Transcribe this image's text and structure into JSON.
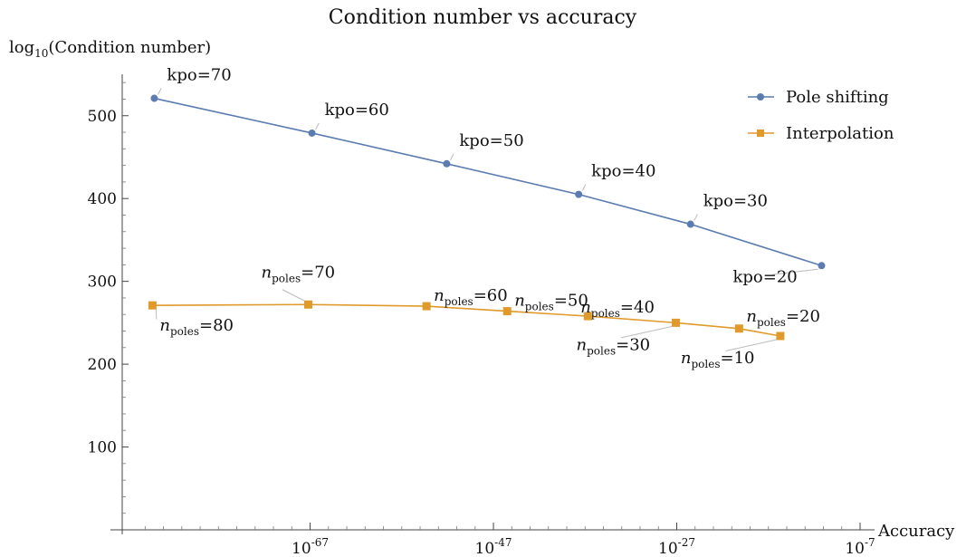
{
  "chart_data": {
    "type": "line",
    "title": "Condition number vs accuracy",
    "xlabel": "Accuracy",
    "ylabel": {
      "prefix": "log",
      "sub": "10",
      "suffix": "(Condition number)"
    },
    "x_scale": "log",
    "x_tick_exponents": [
      -67,
      -47,
      -27,
      -7
    ],
    "x_tick_labels": [
      "10^-67",
      "10^-47",
      "10^-27",
      "10^-7"
    ],
    "y_ticks": [
      100,
      200,
      300,
      400,
      500
    ],
    "y_tick_labels": [
      "100",
      "200",
      "300",
      "400",
      "500"
    ],
    "legend": {
      "placement": "top-right"
    },
    "series": [
      {
        "name": "Pole shifting",
        "color": "#5a7cb0",
        "marker": "circle",
        "points": [
          {
            "x": "10^-84",
            "y": 521,
            "label": "kpo=70"
          },
          {
            "x": "10^-66.8",
            "y": 479,
            "label": "kpo=60"
          },
          {
            "x": "10^-52.1",
            "y": 442,
            "label": "kpo=50"
          },
          {
            "x": "10^-37.7",
            "y": 405,
            "label": "kpo=40"
          },
          {
            "x": "10^-25.5",
            "y": 369,
            "label": "kpo=30"
          },
          {
            "x": "10^-11.2",
            "y": 319,
            "label": "kpo=20"
          }
        ]
      },
      {
        "name": "Interpolation",
        "color": "#e09a2b",
        "marker": "square",
        "points": [
          {
            "x": "10^-84.2",
            "y": 271,
            "label": {
              "base": "n",
              "sub": "poles",
              "rest": "=80"
            }
          },
          {
            "x": "10^-67.2",
            "y": 272,
            "label": {
              "base": "n",
              "sub": "poles",
              "rest": "=70"
            }
          },
          {
            "x": "10^-54.3",
            "y": 270,
            "label": {
              "base": "n",
              "sub": "poles",
              "rest": "=60"
            }
          },
          {
            "x": "10^-45.5",
            "y": 264,
            "label": {
              "base": "n",
              "sub": "poles",
              "rest": "=50"
            }
          },
          {
            "x": "10^-36.7",
            "y": 258,
            "label": {
              "base": "n",
              "sub": "poles",
              "rest": "=40"
            }
          },
          {
            "x": "10^-27.1",
            "y": 250,
            "label": {
              "base": "n",
              "sub": "poles",
              "rest": "=30"
            }
          },
          {
            "x": "10^-20.2",
            "y": 243,
            "label": {
              "base": "n",
              "sub": "poles",
              "rest": "=20"
            }
          },
          {
            "x": "10^-15.7",
            "y": 234,
            "label": {
              "base": "n",
              "sub": "poles",
              "rest": "=10"
            }
          }
        ]
      }
    ]
  }
}
